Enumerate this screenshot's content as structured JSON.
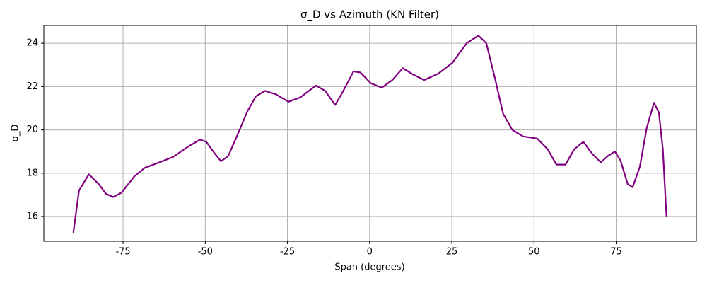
{
  "chart_data": {
    "type": "line",
    "title": "σ_D vs Azimuth (KN Filter)",
    "x_label": "Span (degrees)",
    "y_label": "σ_D",
    "color": "#800080",
    "grid": true,
    "x": [
      -90.1,
      -88.4,
      -85.4,
      -82.4,
      -80.2,
      -78,
      -75.5,
      -71.6,
      -68.4,
      -64,
      -59.8,
      -55.5,
      -51.6,
      -49.7,
      -47.3,
      -45.2,
      -43,
      -40.4,
      -37.2,
      -34.6,
      -31.8,
      -28.6,
      -24.7,
      -21.1,
      -16.3,
      -13.5,
      -10.5,
      -8.2,
      -4.9,
      -2.8,
      0.4,
      3.7,
      6.9,
      10.1,
      13.3,
      16.6,
      20.9,
      25.2,
      29.5,
      33.1,
      35.5,
      38.1,
      40.6,
      43.4,
      46.7,
      51,
      54.2,
      56.8,
      59.6,
      62.2,
      65,
      67.7,
      70.3,
      72.5,
      74.6,
      76.3,
      78.5,
      80,
      82.2,
      84.3,
      86.5,
      88,
      89.2,
      90.3
    ],
    "values": [
      15.28,
      17.2,
      17.95,
      17.5,
      17.05,
      16.9,
      17.1,
      17.85,
      18.25,
      18.5,
      18.75,
      19.2,
      19.55,
      19.45,
      18.95,
      18.55,
      18.8,
      19.7,
      20.85,
      21.55,
      21.8,
      21.65,
      21.3,
      21.5,
      22.05,
      21.8,
      21.15,
      21.75,
      22.7,
      22.65,
      22.15,
      21.95,
      22.3,
      22.85,
      22.55,
      22.3,
      22.6,
      23.1,
      24.0,
      24.35,
      24.0,
      22.4,
      20.75,
      20.0,
      19.7,
      19.6,
      19.1,
      18.4,
      18.4,
      19.1,
      19.45,
      18.9,
      18.5,
      18.8,
      19.0,
      18.6,
      17.5,
      17.35,
      18.3,
      20.1,
      21.25,
      20.8,
      19.1,
      16.0
    ],
    "xlim": [
      -99.1,
      99.4
    ],
    "ylim": [
      14.86,
      24.82
    ],
    "xticks": [
      -75,
      -50,
      -25,
      0,
      25,
      50,
      75
    ],
    "yticks": [
      16,
      18,
      20,
      22,
      24
    ]
  }
}
